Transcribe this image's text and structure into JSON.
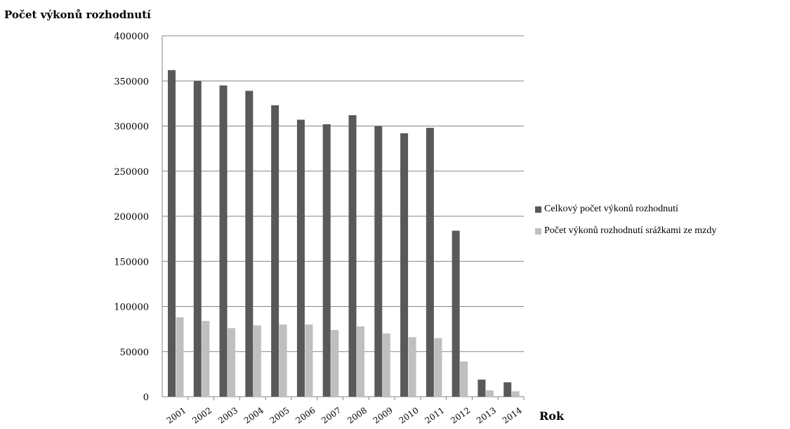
{
  "chart_data": {
    "type": "bar",
    "ylabel": "Počet výkonů rozhodnutí",
    "xlabel": "Rok",
    "categories": [
      "2001",
      "2002",
      "2003",
      "2004",
      "2005",
      "2006",
      "2007",
      "2008",
      "2009",
      "2010",
      "2011",
      "2012",
      "2013",
      "2014"
    ],
    "series": [
      {
        "name": "Celkový počet výkonů rozhodnutí",
        "color": "#595959",
        "values": [
          362000,
          350000,
          345000,
          339000,
          323000,
          307000,
          302000,
          312000,
          300000,
          292000,
          298000,
          184000,
          19000,
          16000
        ]
      },
      {
        "name": "Počet výkonů rozhodnutí srážkami ze mzdy",
        "color": "#bfbfbf",
        "values": [
          88000,
          84000,
          76000,
          79000,
          80000,
          80000,
          74000,
          78000,
          70000,
          66000,
          65000,
          39000,
          7000,
          6000
        ]
      }
    ],
    "ylim": [
      0,
      400000
    ],
    "yticks": [
      "0",
      "50000",
      "100000",
      "150000",
      "200000",
      "250000",
      "300000",
      "350000",
      "400000"
    ],
    "grid": true,
    "legend_position": "right"
  }
}
